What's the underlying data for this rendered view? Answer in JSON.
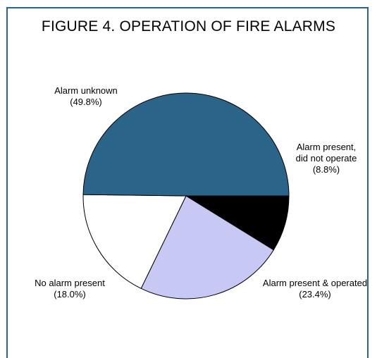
{
  "chart_data": {
    "type": "pie",
    "title": "FIGURE 4.  OPERATION OF FIRE ALARMS",
    "slices": [
      {
        "name": "Alarm present, did not operate",
        "label_lines": [
          "Alarm present,",
          "did not operate"
        ],
        "value_label": "(8.8%)",
        "value": 8.8,
        "color": "#000000"
      },
      {
        "name": "Alarm present & operated",
        "label_lines": [
          "Alarm present & operated"
        ],
        "value_label": "(23.4%)",
        "value": 23.4,
        "color": "#c8c8f4"
      },
      {
        "name": "No alarm present",
        "label_lines": [
          "No alarm present"
        ],
        "value_label": "(18.0%)",
        "value": 18.0,
        "color": "#ffffff"
      },
      {
        "name": "Alarm unknown",
        "label_lines": [
          "Alarm unknown"
        ],
        "value_label": "(49.8%)",
        "value": 49.8,
        "color": "#2a6489"
      }
    ]
  }
}
